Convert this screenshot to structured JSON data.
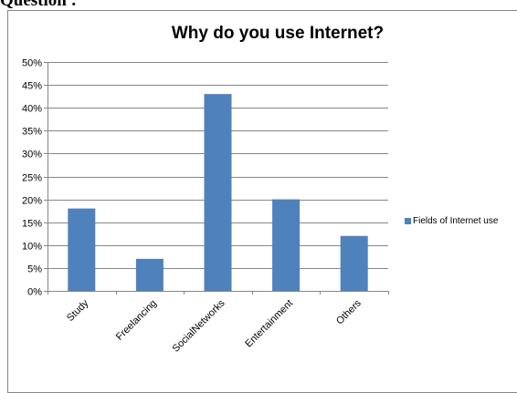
{
  "page": {
    "heading": "Question :"
  },
  "chart_data": {
    "type": "bar",
    "title": "Why do you use Internet?",
    "categories": [
      "Study",
      "Freelancing",
      "SocialNetworks",
      "Entertainment",
      "Others"
    ],
    "series": [
      {
        "name": "Fields of Internet use",
        "values": [
          18,
          7,
          43,
          20,
          12
        ],
        "color": "#4f81bd"
      }
    ],
    "ylim": [
      0,
      50
    ],
    "yticks": [
      0,
      5,
      10,
      15,
      20,
      25,
      30,
      35,
      40,
      45,
      50
    ],
    "ytick_labels": [
      "0%",
      "5%",
      "10%",
      "15%",
      "20%",
      "25%",
      "30%",
      "35%",
      "40%",
      "45%",
      "50%"
    ],
    "grid": true,
    "legend": "right",
    "xlabel": "",
    "ylabel": ""
  }
}
